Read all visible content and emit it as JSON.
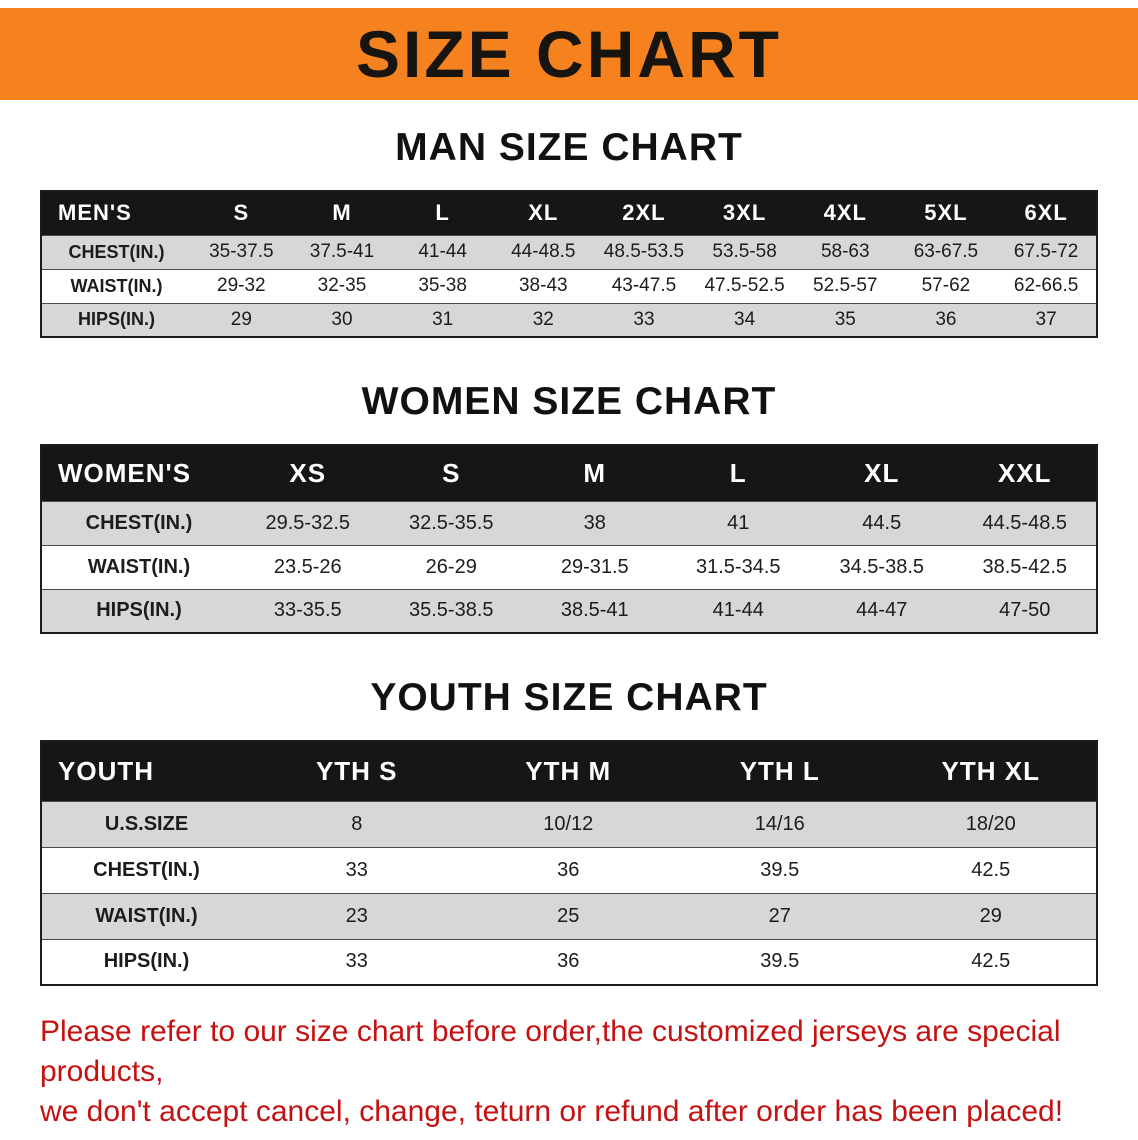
{
  "banner": {
    "title": "SIZE CHART"
  },
  "colors": {
    "banner_bg": "#F5821E",
    "table_header_bg": "#161616",
    "row_alt_bg": "#D7D7D7",
    "footer_text": "#C41111"
  },
  "sections": {
    "men": {
      "title": "MAN SIZE CHART",
      "header": [
        "MEN'S",
        "S",
        "M",
        "L",
        "XL",
        "2XL",
        "3XL",
        "4XL",
        "5XL",
        "6XL"
      ],
      "rows": [
        {
          "label": "CHEST(IN.)",
          "values": [
            "35-37.5",
            "37.5-41",
            "41-44",
            "44-48.5",
            "48.5-53.5",
            "53.5-58",
            "58-63",
            "63-67.5",
            "67.5-72"
          ]
        },
        {
          "label": "WAIST(IN.)",
          "values": [
            "29-32",
            "32-35",
            "35-38",
            "38-43",
            "43-47.5",
            "47.5-52.5",
            "52.5-57",
            "57-62",
            "62-66.5"
          ]
        },
        {
          "label": "HIPS(IN.)",
          "values": [
            "29",
            "30",
            "31",
            "32",
            "33",
            "34",
            "35",
            "36",
            "37"
          ]
        }
      ]
    },
    "women": {
      "title": "WOMEN SIZE CHART",
      "header": [
        "WOMEN'S",
        "XS",
        "S",
        "M",
        "L",
        "XL",
        "XXL"
      ],
      "rows": [
        {
          "label": "CHEST(IN.)",
          "values": [
            "29.5-32.5",
            "32.5-35.5",
            "38",
            "41",
            "44.5",
            "44.5-48.5"
          ]
        },
        {
          "label": "WAIST(IN.)",
          "values": [
            "23.5-26",
            "26-29",
            "29-31.5",
            "31.5-34.5",
            "34.5-38.5",
            "38.5-42.5"
          ]
        },
        {
          "label": "HIPS(IN.)",
          "values": [
            "33-35.5",
            "35.5-38.5",
            "38.5-41",
            "41-44",
            "44-47",
            "47-50"
          ]
        }
      ]
    },
    "youth": {
      "title": "YOUTH SIZE CHART",
      "header": [
        "YOUTH",
        "YTH S",
        "YTH M",
        "YTH L",
        "YTH XL"
      ],
      "rows": [
        {
          "label": "U.S.SIZE",
          "values": [
            "8",
            "10/12",
            "14/16",
            "18/20"
          ]
        },
        {
          "label": "CHEST(IN.)",
          "values": [
            "33",
            "36",
            "39.5",
            "42.5"
          ]
        },
        {
          "label": "WAIST(IN.)",
          "values": [
            "23",
            "25",
            "27",
            "29"
          ]
        },
        {
          "label": "HIPS(IN.)",
          "values": [
            "33",
            "36",
            "39.5",
            "42.5"
          ]
        }
      ]
    }
  },
  "footer": {
    "line1": "Please refer to our size chart before order,the customized jerseys are special products,",
    "line2": "we don't accept cancel, change, teturn or refund after order has been placed!"
  }
}
